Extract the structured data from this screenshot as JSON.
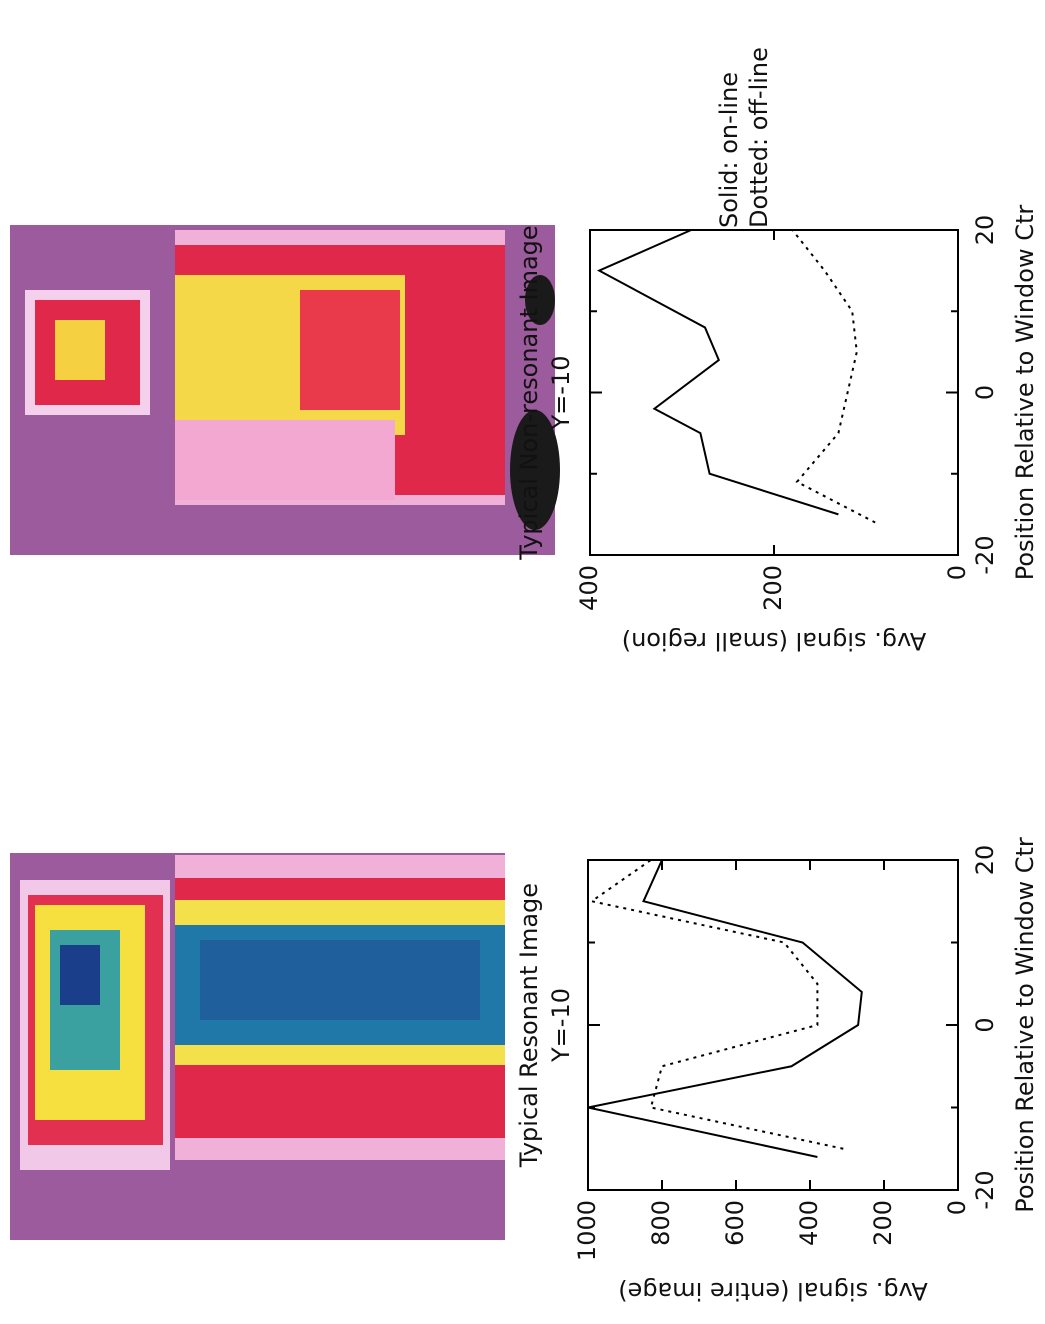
{
  "chart_data": [
    {
      "type": "line",
      "title": "Typical Resonant Image",
      "subtitle": "Y=-10",
      "x_label": "Position Relative to Window Ctr",
      "y_label": "Avg. signal (entire image)",
      "series": [
        {
          "style": "solid",
          "color": "#000000",
          "x": [
            -16,
            -10,
            -5,
            0,
            4,
            10,
            15,
            20
          ],
          "values": [
            380,
            1000,
            450,
            270,
            260,
            420,
            850,
            800
          ]
        },
        {
          "style": "dotted",
          "color": "#000000",
          "x": [
            -15,
            -10,
            -5,
            0,
            5,
            10,
            15,
            20
          ],
          "values": [
            310,
            830,
            800,
            380,
            380,
            470,
            990,
            830
          ]
        }
      ],
      "xlim": [
        -20,
        20
      ],
      "xticks": [
        -20,
        0,
        20
      ],
      "xminor": [
        -10,
        10
      ],
      "ylim": [
        0,
        1000
      ],
      "yticks": [
        0,
        200,
        400,
        600,
        800,
        1000
      ]
    },
    {
      "type": "line",
      "title": "Typical Non-resonant Image",
      "subtitle": "Y=-10",
      "x_label": "Position Relative to Window Ctr",
      "y_label": "Avg. signal (small region)",
      "series": [
        {
          "style": "solid",
          "color": "#000000",
          "x": [
            -15,
            -10,
            -5,
            -2,
            4,
            8,
            15,
            20
          ],
          "values": [
            130,
            270,
            280,
            330,
            260,
            275,
            390,
            290
          ]
        },
        {
          "style": "dotted",
          "color": "#000000",
          "x": [
            -16,
            -11,
            -5,
            5,
            10,
            15,
            20
          ],
          "values": [
            90,
            175,
            130,
            110,
            115,
            145,
            180
          ]
        }
      ],
      "xlim": [
        -20,
        20
      ],
      "xticks": [
        -20,
        0,
        20
      ],
      "xminor": [
        -10,
        10
      ],
      "ylim": [
        0,
        400
      ],
      "yticks": [
        0,
        200,
        400
      ],
      "legend": [
        "Solid: on-line",
        "Dotted: off-line"
      ]
    }
  ]
}
